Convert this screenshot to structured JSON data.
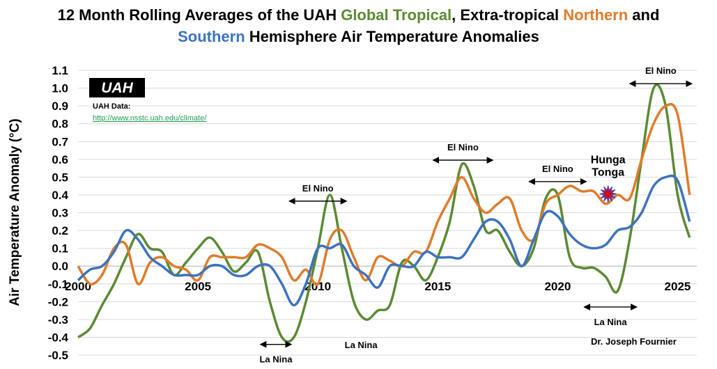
{
  "title": {
    "part1": "12 Month Rolling Averages of the UAH ",
    "part2": "Global Tropical",
    "part3": ", Extra-tropical ",
    "part4": "Northern",
    "part5": "  and",
    "part6": "Southern",
    "part7": " Hemisphere Air Temperature Anomalies"
  },
  "logo": {
    "text": "UAH",
    "data_label": "UAH Data:",
    "url": "http://www.nsstc.uah.edu/climate/"
  },
  "credit": "Dr. Joseph Fournier",
  "colors": {
    "global_tropical": "#5b8a32",
    "northern": "#e07b2a",
    "southern": "#3c72c0",
    "grid": "#d9d9d9",
    "event": "#cc1111"
  },
  "chart_data": {
    "type": "line",
    "ylabel": "Air Temperature Anomaly (°C)",
    "xlabel": "",
    "xlim": [
      2000,
      2025.8
    ],
    "ylim": [
      -0.5,
      1.1
    ],
    "x_ticks": [
      "2000",
      "2005",
      "2010",
      "2015",
      "2020",
      "2025"
    ],
    "y_ticks": [
      "-0.5",
      "-0.4",
      "-0.3",
      "-0.2",
      "-0.1",
      "0.0",
      "0.1",
      "0.2",
      "0.3",
      "0.4",
      "0.5",
      "0.6",
      "0.7",
      "0.8",
      "0.9",
      "1.0",
      "1.1"
    ],
    "grid": "horizontal",
    "x": [
      2000.0,
      2000.5,
      2001.0,
      2001.5,
      2002.0,
      2002.5,
      2003.0,
      2003.5,
      2004.0,
      2004.5,
      2005.0,
      2005.5,
      2006.0,
      2006.5,
      2007.0,
      2007.5,
      2008.0,
      2008.5,
      2009.0,
      2009.5,
      2010.0,
      2010.5,
      2011.0,
      2011.5,
      2012.0,
      2012.5,
      2013.0,
      2013.5,
      2014.0,
      2014.5,
      2015.0,
      2015.5,
      2016.0,
      2016.5,
      2017.0,
      2017.5,
      2018.0,
      2018.5,
      2019.0,
      2019.5,
      2020.0,
      2020.5,
      2021.0,
      2021.5,
      2022.0,
      2022.5,
      2023.0,
      2023.5,
      2024.0,
      2024.5,
      2025.0,
      2025.5
    ],
    "series": [
      {
        "key": "global_tropical",
        "values": [
          -0.4,
          -0.35,
          -0.22,
          -0.1,
          0.05,
          0.18,
          0.1,
          0.08,
          -0.05,
          0.02,
          0.1,
          0.16,
          0.08,
          -0.03,
          0.02,
          0.08,
          -0.2,
          -0.4,
          -0.4,
          -0.2,
          0.1,
          0.4,
          0.1,
          -0.2,
          -0.3,
          -0.25,
          -0.22,
          0.02,
          0.0,
          -0.08,
          0.05,
          0.25,
          0.57,
          0.45,
          0.2,
          0.2,
          0.08,
          0.0,
          0.1,
          0.38,
          0.4,
          0.05,
          -0.01,
          -0.01,
          -0.06,
          -0.14,
          0.15,
          0.6,
          1.0,
          0.9,
          0.4,
          0.16
        ]
      },
      {
        "key": "northern",
        "values": [
          0.0,
          -0.1,
          -0.05,
          0.1,
          0.12,
          -0.1,
          0.02,
          0.05,
          0.0,
          -0.02,
          -0.08,
          0.05,
          0.05,
          0.05,
          0.05,
          0.12,
          0.1,
          0.05,
          -0.08,
          -0.02,
          -0.1,
          0.15,
          0.2,
          0.05,
          -0.08,
          0.05,
          0.03,
          0.0,
          0.08,
          0.08,
          0.25,
          0.38,
          0.5,
          0.38,
          0.3,
          0.35,
          0.38,
          0.2,
          0.15,
          0.35,
          0.4,
          0.45,
          0.42,
          0.42,
          0.35,
          0.4,
          0.38,
          0.6,
          0.8,
          0.9,
          0.85,
          0.4
        ]
      },
      {
        "key": "southern",
        "values": [
          -0.08,
          -0.02,
          0.0,
          0.08,
          0.2,
          0.15,
          0.05,
          0.0,
          -0.05,
          -0.05,
          -0.05,
          0.0,
          0.0,
          -0.05,
          -0.05,
          0.0,
          0.0,
          -0.1,
          -0.22,
          -0.1,
          0.1,
          0.1,
          0.12,
          0.0,
          -0.05,
          -0.12,
          0.0,
          0.0,
          0.0,
          0.08,
          0.05,
          0.05,
          0.05,
          0.15,
          0.25,
          0.25,
          0.15,
          0.0,
          0.15,
          0.3,
          0.28,
          0.18,
          0.12,
          0.1,
          0.12,
          0.2,
          0.22,
          0.3,
          0.45,
          0.5,
          0.48,
          0.25
        ]
      }
    ],
    "annotations": [
      {
        "label": "El Nino",
        "x0": 2008.8,
        "x1": 2011.2,
        "y": 0.365,
        "label_pos": "above"
      },
      {
        "label": "El Nino",
        "x0": 2014.8,
        "x1": 2017.3,
        "y": 0.595,
        "label_pos": "above"
      },
      {
        "label": "El Nino",
        "x0": 2018.8,
        "x1": 2021.2,
        "y": 0.475,
        "label_pos": "above"
      },
      {
        "label": "El Nino",
        "x0": 2023.0,
        "x1": 2025.6,
        "y": 1.025,
        "label_pos": "above"
      },
      {
        "label": "La Nina",
        "x0": 2007.6,
        "x1": 2008.9,
        "y": -0.44,
        "label_pos": "below"
      },
      {
        "label": "La Nina",
        "x0": 2021.1,
        "x1": 2023.3,
        "y": -0.23,
        "label_pos": "below"
      }
    ],
    "text_annotations": [
      {
        "label": "La Nina",
        "x": 2011.8,
        "y": -0.46
      }
    ],
    "event": {
      "line1": "Hunga",
      "line2": "Tonga",
      "x": 2022.1,
      "y": 0.48
    }
  }
}
